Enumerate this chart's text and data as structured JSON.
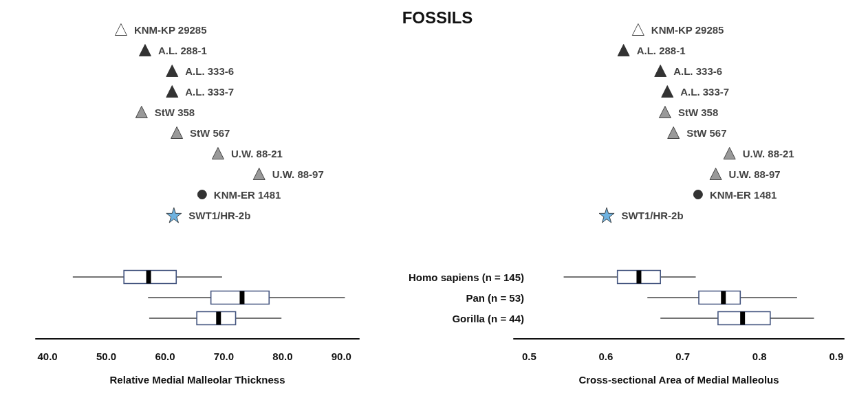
{
  "chart_data": [
    {
      "type": "box",
      "orientation": "horizontal",
      "title": "FOSSILS",
      "xlabel": "Relative Medial Malleolar Thickness",
      "categories": [
        "KNM-KP 29285",
        "A.L. 288-1",
        "A.L. 333-6",
        "A.L. 333-7",
        "StW 358",
        "StW 567",
        "U.W. 88-21",
        "U.W. 88-97",
        "KNM-ER 1481",
        "SWT1/HR-2b",
        null,
        null,
        "Homo sapiens (n = 145)",
        "Pan (n = 53)",
        "Gorilla (n = 44)"
      ],
      "xlim": [
        38,
        93
      ],
      "xticks": [
        {
          "value": 40,
          "label": "40.0"
        },
        {
          "value": 50,
          "label": "50.0"
        },
        {
          "value": 60,
          "label": "60.0"
        },
        {
          "value": 70,
          "label": "70.0"
        },
        {
          "value": 80,
          "label": "80.0"
        },
        {
          "value": 90,
          "label": "90.0"
        }
      ],
      "grid": false,
      "series": [
        {
          "type": "box",
          "color": "#44557f",
          "boxes": [
            null,
            null,
            null,
            null,
            null,
            null,
            null,
            null,
            null,
            null,
            null,
            null,
            {
              "low": 44.3,
              "q1": 53.0,
              "median": 57.2,
              "q3": 61.9,
              "high": 69.7
            },
            {
              "low": 57.1,
              "q1": 67.8,
              "median": 73.1,
              "q3": 77.7,
              "high": 90.6
            },
            {
              "low": 57.3,
              "q1": 65.4,
              "median": 69.1,
              "q3": 72.0,
              "high": 79.8
            }
          ]
        },
        {
          "type": "scatter",
          "color": "#ffffff",
          "marker": "triangle",
          "values": [
            52.5,
            null,
            null,
            null,
            null,
            null,
            null,
            null,
            null,
            null,
            null,
            null,
            null,
            null,
            null
          ]
        },
        {
          "type": "scatter",
          "color": "#000000",
          "marker": "triangle",
          "values": [
            null,
            56.6,
            61.2,
            61.2,
            null,
            null,
            null,
            null,
            null,
            null,
            null,
            null,
            null,
            null,
            null
          ]
        },
        {
          "type": "scatter",
          "color": "#808080",
          "marker": "triangle",
          "values": [
            null,
            null,
            null,
            null,
            56.0,
            62.0,
            69.0,
            76.0,
            null,
            null,
            null,
            null,
            null,
            null,
            null
          ]
        },
        {
          "type": "scatter",
          "color": "#000000",
          "marker": "circle",
          "values": [
            null,
            null,
            null,
            null,
            null,
            null,
            null,
            null,
            66.3,
            null,
            null,
            null,
            null,
            null,
            null
          ]
        },
        {
          "type": "scatter",
          "color": "#4a9fd8",
          "marker": "star",
          "values": [
            null,
            null,
            null,
            null,
            null,
            null,
            null,
            null,
            null,
            61.5,
            null,
            null,
            null,
            null,
            null
          ]
        }
      ]
    },
    {
      "type": "box",
      "orientation": "horizontal",
      "xlabel": "Cross-sectional Area of Medial Malleolus",
      "categories": [
        "KNM-KP 29285",
        "A.L. 288-1",
        "A.L. 333-6",
        "A.L. 333-7",
        "StW 358",
        "StW 567",
        "U.W. 88-21",
        "U.W. 88-97",
        "KNM-ER 1481",
        "SWT1/HR-2b",
        null,
        null,
        null,
        null,
        null
      ],
      "xlim": [
        0.48,
        0.91
      ],
      "xticks": [
        0.5,
        0.6,
        0.7,
        0.8,
        0.9
      ],
      "tick_labels": "x",
      "grid": false,
      "series": [
        {
          "type": "box",
          "color": "#44557f",
          "boxes": [
            null,
            null,
            null,
            null,
            null,
            null,
            null,
            null,
            null,
            null,
            null,
            null,
            {
              "low": 0.545,
              "q1": 0.615,
              "median": 0.643,
              "q3": 0.671,
              "high": 0.717
            },
            {
              "low": 0.654,
              "q1": 0.721,
              "median": 0.753,
              "q3": 0.775,
              "high": 0.849
            },
            {
              "low": 0.671,
              "q1": 0.746,
              "median": 0.778,
              "q3": 0.814,
              "high": 0.871
            }
          ]
        },
        {
          "type": "scatter",
          "color": "#ffffff",
          "marker": "triangle",
          "values": [
            0.642,
            null,
            null,
            null,
            null,
            null,
            null,
            null,
            null,
            null,
            null,
            null,
            null,
            null,
            null
          ]
        },
        {
          "type": "scatter",
          "color": "#000000",
          "marker": "triangle",
          "values": [
            null,
            0.623,
            0.671,
            0.68,
            null,
            null,
            null,
            null,
            null,
            null,
            null,
            null,
            null,
            null,
            null
          ]
        },
        {
          "type": "scatter",
          "color": "#808080",
          "marker": "triangle",
          "values": [
            null,
            null,
            null,
            null,
            0.677,
            0.688,
            0.761,
            0.743,
            null,
            null,
            null,
            null,
            null,
            null,
            null
          ]
        },
        {
          "type": "scatter",
          "color": "#000000",
          "marker": "circle",
          "values": [
            null,
            null,
            null,
            null,
            null,
            null,
            null,
            null,
            0.72,
            null,
            null,
            null,
            null,
            null,
            null
          ]
        },
        {
          "type": "scatter",
          "color": "#4a9fd8",
          "marker": "star",
          "values": [
            null,
            null,
            null,
            null,
            null,
            null,
            null,
            null,
            null,
            0.601,
            null,
            null,
            null,
            null,
            null
          ]
        }
      ]
    }
  ]
}
